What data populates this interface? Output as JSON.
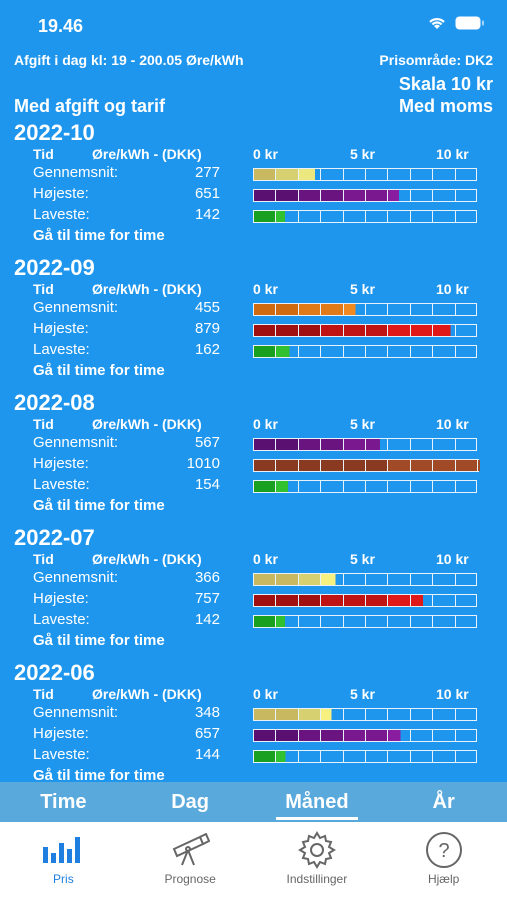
{
  "status_bar": {
    "time": "19.46"
  },
  "header": {
    "fee_line": "Afgift i dag kl: 19 - 200.05 Øre/kWh",
    "price_area": "Prisområde: DK2",
    "scale": "Skala 10 kr",
    "vat": "Med moms",
    "with_fee": "Med afgift og tarif"
  },
  "columns": {
    "time": "Tid",
    "unit": "Øre/kWh - (DKK)",
    "t0": "0 kr",
    "t5": "5 kr",
    "t10": "10 kr"
  },
  "months": [
    {
      "title": "2022-10",
      "rows": [
        {
          "label": "Gennemsnit:",
          "value": "277",
          "colors": [
            "#c8b860",
            "#d6d070",
            "#ece880"
          ],
          "fill": 2.77
        },
        {
          "label": "Højeste:",
          "value": "651",
          "colors": [
            "#5a1070",
            "#6a1480",
            "#7a1890",
            "#8a1ca0"
          ],
          "fill": 6.51
        },
        {
          "label": "Laveste:",
          "value": "142",
          "colors": [
            "#1aa020",
            "#30c030"
          ],
          "fill": 1.42
        }
      ],
      "link": "Gå til time for time"
    },
    {
      "title": "2022-09",
      "rows": [
        {
          "label": "Gennemsnit:",
          "value": "455",
          "colors": [
            "#d06a10",
            "#e07a18",
            "#f08a20"
          ],
          "fill": 4.55
        },
        {
          "label": "Højeste:",
          "value": "879",
          "colors": [
            "#a01010",
            "#c01414",
            "#e01818"
          ],
          "fill": 8.79
        },
        {
          "label": "Laveste:",
          "value": "162",
          "colors": [
            "#1aa020",
            "#30c030"
          ],
          "fill": 1.62
        }
      ],
      "link": "Gå til time for time"
    },
    {
      "title": "2022-08",
      "rows": [
        {
          "label": "Gennemsnit:",
          "value": "567",
          "colors": [
            "#5a1070",
            "#6a1480",
            "#7a1890"
          ],
          "fill": 5.67
        },
        {
          "label": "Højeste:",
          "value": "1010",
          "colors": [
            "#8a3a20",
            "#a04a28"
          ],
          "fill": 10.1
        },
        {
          "label": "Laveste:",
          "value": "154",
          "colors": [
            "#1aa020",
            "#30c030"
          ],
          "fill": 1.54
        }
      ],
      "link": "Gå til time for time"
    },
    {
      "title": "2022-07",
      "rows": [
        {
          "label": "Gennemsnit:",
          "value": "366",
          "colors": [
            "#c8b860",
            "#d6d070",
            "#f6f080"
          ],
          "fill": 3.66
        },
        {
          "label": "Højeste:",
          "value": "757",
          "colors": [
            "#a01010",
            "#c01414",
            "#e01818"
          ],
          "fill": 7.57
        },
        {
          "label": "Laveste:",
          "value": "142",
          "colors": [
            "#1aa020",
            "#30c030"
          ],
          "fill": 1.42
        }
      ],
      "link": "Gå til time for time"
    },
    {
      "title": "2022-06",
      "rows": [
        {
          "label": "Gennemsnit:",
          "value": "348",
          "colors": [
            "#c8b860",
            "#d6d070",
            "#f6f080"
          ],
          "fill": 3.48
        },
        {
          "label": "Højeste:",
          "value": "657",
          "colors": [
            "#5a1070",
            "#6a1480",
            "#7a1890",
            "#8a1ca0"
          ],
          "fill": 6.57
        },
        {
          "label": "Laveste:",
          "value": "144",
          "colors": [
            "#1aa020",
            "#30c030"
          ],
          "fill": 1.44
        }
      ],
      "link": "Gå til time for time"
    }
  ],
  "segments": [
    "Time",
    "Dag",
    "Måned",
    "År"
  ],
  "active_segment": "Måned",
  "tabs": [
    {
      "label": "Pris",
      "icon": "bar-chart-icon"
    },
    {
      "label": "Prognose",
      "icon": "telescope-icon"
    },
    {
      "label": "Indstillinger",
      "icon": "gear-icon"
    },
    {
      "label": "Hjælp",
      "icon": "help-icon"
    }
  ],
  "active_tab": "Pris"
}
